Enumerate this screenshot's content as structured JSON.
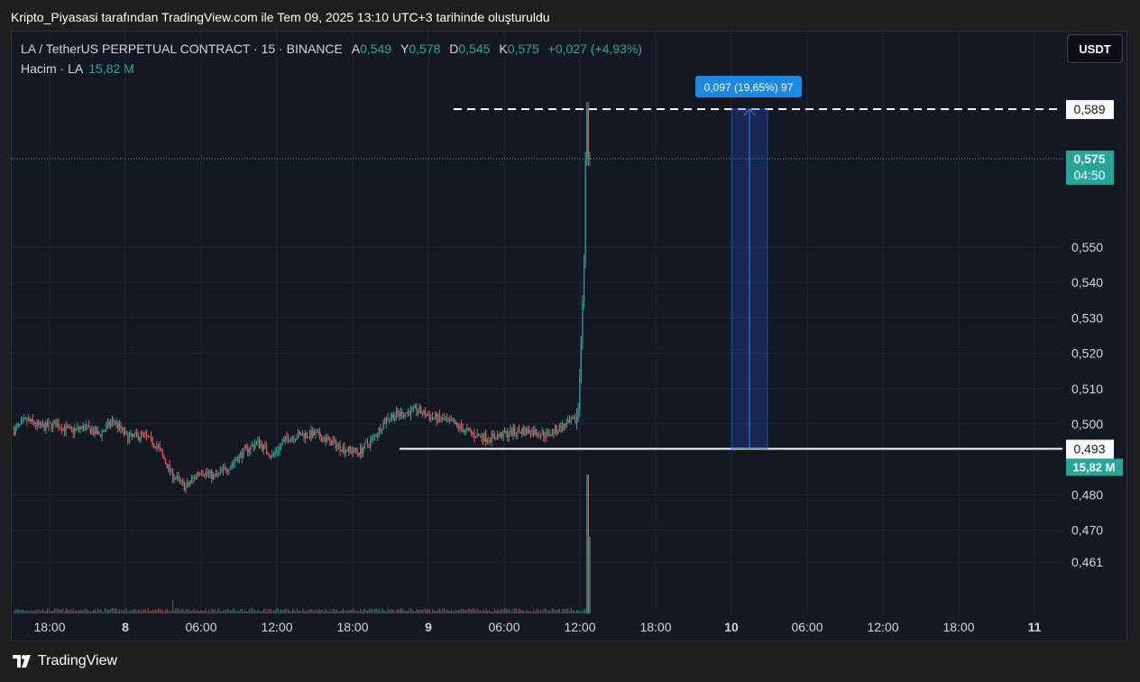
{
  "caption": "Kripto_Piyasasi tarafından TradingView.com ile Tem 09, 2025 13:10 UTC+3 tarihinde oluşturuldu",
  "legend": {
    "symbol": "LA / TetherUS PERPETUAL CONTRACT · 15 · BINANCE",
    "open_label": "A",
    "open": "0,549",
    "high_label": "Y",
    "high": "0,578",
    "low_label": "D",
    "low": "0,545",
    "close_label": "K",
    "close": "0,575",
    "change": "+0,027 (+4,93%)",
    "volume_label": "Hacim · LA",
    "volume_value": "15,82 M"
  },
  "currency_button": "USDT",
  "brand": "TradingView",
  "colors": {
    "up": "#26a69a",
    "down": "#ef5350",
    "background": "#141823",
    "grid": "#1f2433",
    "measure": "#2962ff",
    "measure_label": "#1e88e5"
  },
  "chart_data": {
    "type": "candlestick",
    "interval": "15",
    "y_ticks": [
      "0,461",
      "0,470",
      "0,480",
      "0,500",
      "0,510",
      "0,520",
      "0,530",
      "0,540",
      "0,550"
    ],
    "x_ticks": [
      "18:00",
      "8",
      "06:00",
      "12:00",
      "18:00",
      "9",
      "06:00",
      "12:00",
      "18:00",
      "10",
      "06:00",
      "12:00",
      "18:00",
      "11"
    ],
    "last_price": {
      "label": "0,575",
      "countdown": "04:50",
      "value": 0.575
    },
    "dashed_line": {
      "label": "0,589",
      "value": 0.589
    },
    "solid_line": {
      "label": "0,493",
      "value": 0.493
    },
    "volume_label": "15,82 M",
    "measure": {
      "label": "0,097 (19,65%) 97",
      "from": 0.493,
      "to": 0.589
    },
    "price_path": [
      [
        0,
        0.498
      ],
      [
        10,
        0.501
      ],
      [
        20,
        0.499
      ],
      [
        30,
        0.5
      ],
      [
        40,
        0.498
      ],
      [
        50,
        0.499
      ],
      [
        60,
        0.497
      ],
      [
        70,
        0.501
      ],
      [
        80,
        0.496
      ],
      [
        90,
        0.497
      ],
      [
        100,
        0.494
      ],
      [
        110,
        0.486
      ],
      [
        120,
        0.482
      ],
      [
        130,
        0.487
      ],
      [
        140,
        0.485
      ],
      [
        150,
        0.488
      ],
      [
        160,
        0.492
      ],
      [
        170,
        0.495
      ],
      [
        180,
        0.491
      ],
      [
        190,
        0.496
      ],
      [
        200,
        0.497
      ],
      [
        210,
        0.497
      ],
      [
        220,
        0.495
      ],
      [
        230,
        0.493
      ],
      [
        240,
        0.492
      ],
      [
        250,
        0.496
      ],
      [
        260,
        0.502
      ],
      [
        270,
        0.503
      ],
      [
        280,
        0.504
      ],
      [
        290,
        0.502
      ],
      [
        300,
        0.501
      ],
      [
        310,
        0.499
      ],
      [
        320,
        0.497
      ],
      [
        330,
        0.496
      ],
      [
        340,
        0.497
      ],
      [
        350,
        0.498
      ],
      [
        360,
        0.498
      ],
      [
        370,
        0.497
      ],
      [
        380,
        0.499
      ],
      [
        385,
        0.5
      ],
      [
        390,
        0.501
      ],
      [
        392,
        0.504
      ],
      [
        394,
        0.523
      ],
      [
        396,
        0.546
      ],
      [
        397,
        0.575
      ],
      [
        398,
        0.589
      ],
      [
        399,
        0.575
      ]
    ],
    "volume_spike_ratio": 0.55
  }
}
